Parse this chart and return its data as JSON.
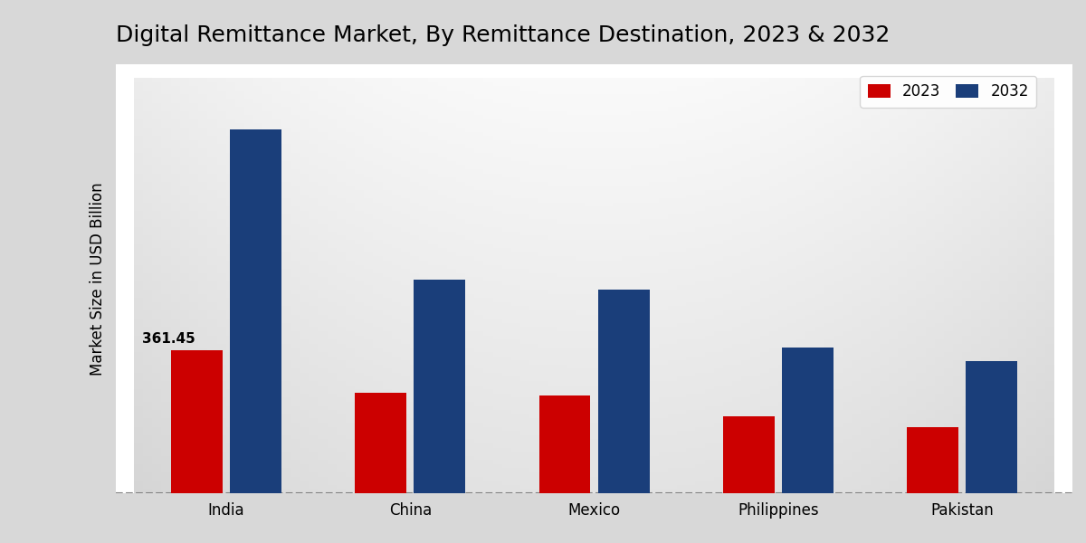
{
  "title": "Digital Remittance Market, By Remittance Destination, 2023 & 2032",
  "ylabel": "Market Size in USD Billion",
  "categories": [
    "India",
    "China",
    "Mexico",
    "Philippines",
    "Pakistan"
  ],
  "values_2023": [
    361.45,
    255.0,
    248.0,
    195.0,
    168.0
  ],
  "values_2032": [
    920.0,
    540.0,
    515.0,
    370.0,
    335.0
  ],
  "color_2023": "#CC0000",
  "color_2032": "#1A3E7A",
  "label_2023": "2023",
  "label_2032": "2032",
  "annotation_value": "361.45",
  "annotation_bar": 0,
  "bar_width": 0.28,
  "title_fontsize": 18,
  "ylabel_fontsize": 12,
  "tick_fontsize": 12,
  "legend_fontsize": 12,
  "annotation_fontsize": 11
}
